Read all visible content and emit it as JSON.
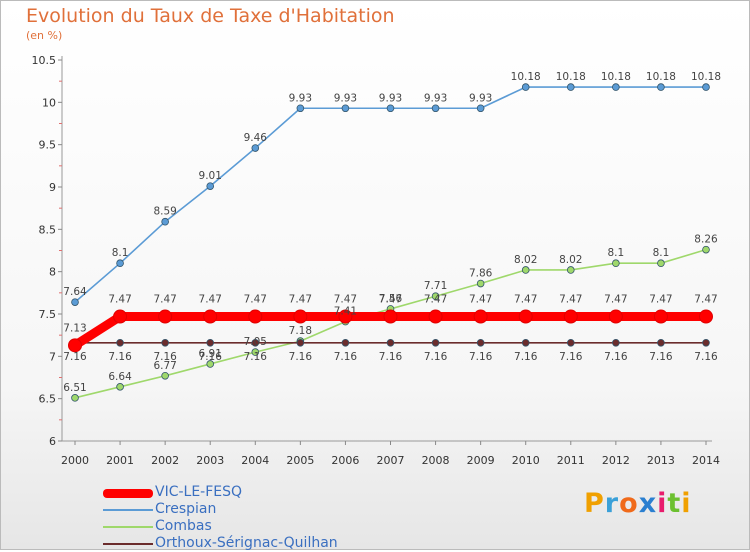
{
  "title": "Evolution du Taux de Taxe d'Habitation",
  "subtitle": "(en %)",
  "logo": {
    "letters": [
      "P",
      "r",
      "o",
      "x",
      "i",
      "t",
      "i"
    ],
    "colors": [
      "#f0a000",
      "#3aa0d8",
      "#f06a1a",
      "#2a7fd0",
      "#e81c6c",
      "#6cc030",
      "#f0a000"
    ]
  },
  "chart_data": {
    "type": "line",
    "x": [
      "2000",
      "2001",
      "2002",
      "2003",
      "2004",
      "2005",
      "2006",
      "2007",
      "2008",
      "2009",
      "2010",
      "2011",
      "2012",
      "2013",
      "2014"
    ],
    "ylim": [
      6,
      10.5
    ],
    "yticks": [
      "6",
      "6.5",
      "7",
      "7.5",
      "8",
      "8.5",
      "9",
      "9.5",
      "10",
      "10.5"
    ],
    "grid": false,
    "legend_position": "bottom-left",
    "series": [
      {
        "name": "Crespian",
        "color": "#5b9bd5",
        "labels": [
          "7.64",
          "8.1",
          "8.59",
          "9.01",
          "9.46",
          "9.93",
          "9.93",
          "9.93",
          "9.93",
          "9.93",
          "10.18",
          "10.18",
          "10.18",
          "10.18",
          "10.18"
        ],
        "values": [
          7.64,
          8.1,
          8.59,
          9.01,
          9.46,
          9.93,
          9.93,
          9.93,
          9.93,
          9.93,
          10.18,
          10.18,
          10.18,
          10.18,
          10.18
        ]
      },
      {
        "name": "Combas",
        "color": "#9fd86b",
        "labels": [
          "6.51",
          "6.64",
          "6.77",
          "6.91",
          "7.05",
          "7.18",
          "7.41",
          "7.56",
          "7.71",
          "7.86",
          "8.02",
          "8.02",
          "8.1",
          "8.1",
          "8.26"
        ],
        "values": [
          6.51,
          6.64,
          6.77,
          6.91,
          7.05,
          7.18,
          7.41,
          7.56,
          7.71,
          7.86,
          8.02,
          8.02,
          8.1,
          8.1,
          8.26
        ]
      },
      {
        "name": "Orthoux-Sérignac-Quilhan",
        "color": "#6b2c2c",
        "labels": [
          "7.16",
          "7.16",
          "7.16",
          "7.16",
          "7.16",
          "7.16",
          "7.16",
          "7.16",
          "7.16",
          "7.16",
          "7.16",
          "7.16",
          "7.16",
          "7.16",
          "7.16"
        ],
        "values": [
          7.16,
          7.16,
          7.16,
          7.16,
          7.16,
          7.16,
          7.16,
          7.16,
          7.16,
          7.16,
          7.16,
          7.16,
          7.16,
          7.16,
          7.16
        ]
      },
      {
        "name": "VIC-LE-FESQ",
        "color": "#ff0000",
        "labels": [
          "7.13",
          "7.47",
          "7.47",
          "7.47",
          "7.47",
          "7.47",
          "7.47",
          "7.47",
          "7.47",
          "7.47",
          "7.47",
          "7.47",
          "7.47",
          "7.47",
          "7.47"
        ],
        "values": [
          7.13,
          7.47,
          7.47,
          7.47,
          7.47,
          7.47,
          7.47,
          7.47,
          7.47,
          7.47,
          7.47,
          7.47,
          7.47,
          7.47,
          7.47
        ]
      }
    ],
    "legend": [
      "VIC-LE-FESQ",
      "Crespian",
      "Combas",
      "Orthoux-Sérignac-Quilhan"
    ]
  }
}
